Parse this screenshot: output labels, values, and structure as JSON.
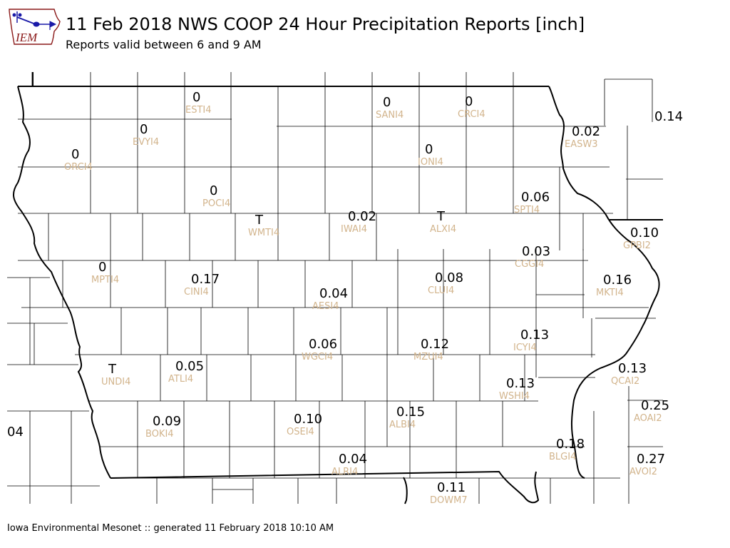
{
  "header": {
    "logo_text": "IEM",
    "title": "11 Feb 2018 NWS COOP 24 Hour Precipitation Reports [inch]",
    "subtitle": "Reports valid between 6 and 9 AM"
  },
  "footer": {
    "credit": "Iowa Environmental Mesonet :: generated 11 February 2018 10:10 AM"
  },
  "map": {
    "background": "#ffffff",
    "border_color": "#000000",
    "value_color": "#000000",
    "station_id_color": "#d2b48c",
    "stations": [
      {
        "id": "ESTI4",
        "value": "0"
      },
      {
        "id": "SANI4",
        "value": "0"
      },
      {
        "id": "CRCI4",
        "value": "0"
      },
      {
        "id": "EVYI4",
        "value": "0"
      },
      {
        "id": "ORCI4",
        "value": "0"
      },
      {
        "id": "IONI4",
        "value": "0"
      },
      {
        "id": "EASW3",
        "value": "0.02"
      },
      {
        "id": "",
        "value": "0.14"
      },
      {
        "id": "POCI4",
        "value": "0"
      },
      {
        "id": "SPTI4",
        "value": "0.06"
      },
      {
        "id": "WMTI4",
        "value": "T"
      },
      {
        "id": "IWAI4",
        "value": "0.02"
      },
      {
        "id": "ALXI4",
        "value": "T"
      },
      {
        "id": "GPBI2",
        "value": "0.10"
      },
      {
        "id": "CGGI4",
        "value": "0.03"
      },
      {
        "id": "MPTI4",
        "value": "0"
      },
      {
        "id": "CINI4",
        "value": "0.17"
      },
      {
        "id": "CLUI4",
        "value": "0.08"
      },
      {
        "id": "MKTI4",
        "value": "0.16"
      },
      {
        "id": "AESI4",
        "value": "0.04"
      },
      {
        "id": "ICYI4",
        "value": "0.13"
      },
      {
        "id": "WGCI4",
        "value": "0.06"
      },
      {
        "id": "MZUI4",
        "value": "0.12"
      },
      {
        "id": "UNDI4",
        "value": "T"
      },
      {
        "id": "ATLI4",
        "value": "0.05"
      },
      {
        "id": "QCAI2",
        "value": "0.13"
      },
      {
        "id": "WSHI4",
        "value": "0.13"
      },
      {
        "id": "AOAI2",
        "value": "0.25"
      },
      {
        "id": "",
        "value": "04"
      },
      {
        "id": "BOKI4",
        "value": "0.09"
      },
      {
        "id": "OSEI4",
        "value": "0.10"
      },
      {
        "id": "ALBI4",
        "value": "0.15"
      },
      {
        "id": "BLGI4",
        "value": "0.18"
      },
      {
        "id": "ALRI4",
        "value": "0.04"
      },
      {
        "id": "AVOI2",
        "value": "0.27"
      },
      {
        "id": "DOWM7",
        "value": "0.11"
      }
    ]
  }
}
